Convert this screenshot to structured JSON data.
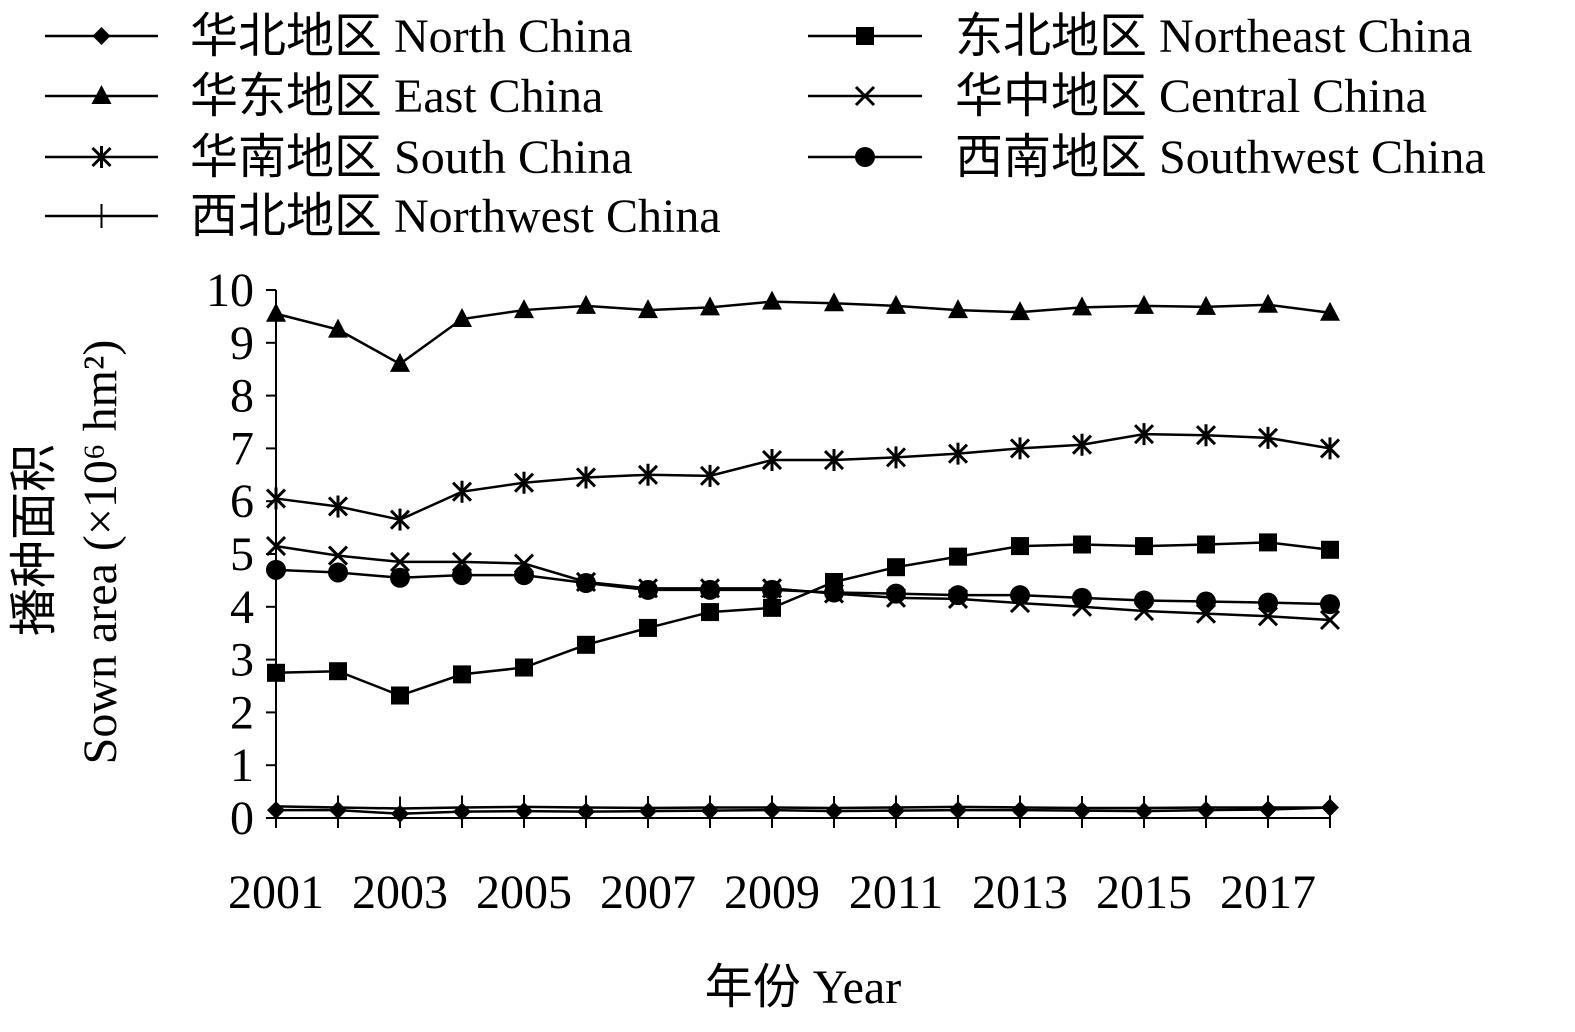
{
  "chart_data": {
    "type": "line",
    "xlabel": "年份 Year",
    "ylabel_lines": [
      "播种面积",
      "Sown area (×10⁶ hm²)"
    ],
    "ylim": [
      0,
      10
    ],
    "yticks": [
      0,
      1,
      2,
      3,
      4,
      5,
      6,
      7,
      8,
      9,
      10
    ],
    "x": [
      2001,
      2002,
      2003,
      2004,
      2005,
      2006,
      2007,
      2008,
      2009,
      2010,
      2011,
      2012,
      2013,
      2014,
      2015,
      2016,
      2017,
      2018
    ],
    "xtick_labels": [
      "2001",
      "2003",
      "2005",
      "2007",
      "2009",
      "2011",
      "2013",
      "2015",
      "2017"
    ],
    "grid": false,
    "legend_position": "top",
    "series": [
      {
        "name": "华北地区 North China",
        "marker": "diamond",
        "values": [
          0.15,
          0.15,
          0.08,
          0.12,
          0.13,
          0.12,
          0.13,
          0.14,
          0.15,
          0.13,
          0.14,
          0.15,
          0.15,
          0.14,
          0.13,
          0.15,
          0.16,
          0.2
        ]
      },
      {
        "name": "东北地区 Northeast China",
        "marker": "square",
        "values": [
          2.75,
          2.78,
          2.32,
          2.72,
          2.85,
          3.28,
          3.6,
          3.9,
          3.98,
          4.47,
          4.75,
          4.95,
          5.15,
          5.18,
          5.15,
          5.18,
          5.22,
          5.08
        ]
      },
      {
        "name": "华东地区 East China",
        "marker": "triangle",
        "values": [
          9.55,
          9.25,
          8.6,
          9.45,
          9.62,
          9.7,
          9.62,
          9.67,
          9.78,
          9.75,
          9.7,
          9.62,
          9.58,
          9.67,
          9.7,
          9.68,
          9.72,
          9.57
        ]
      },
      {
        "name": "华中地区 Central China",
        "marker": "x",
        "values": [
          5.15,
          4.97,
          4.85,
          4.85,
          4.82,
          4.47,
          4.35,
          4.35,
          4.35,
          4.25,
          4.17,
          4.15,
          4.07,
          4.0,
          3.92,
          3.87,
          3.82,
          3.75
        ]
      },
      {
        "name": "华南地区 South China",
        "marker": "star",
        "values": [
          6.05,
          5.9,
          5.65,
          6.18,
          6.35,
          6.45,
          6.5,
          6.48,
          6.78,
          6.78,
          6.83,
          6.9,
          7.0,
          7.07,
          7.27,
          7.25,
          7.2,
          7.0
        ]
      },
      {
        "name": "西南地区 Southwest China",
        "marker": "circle",
        "values": [
          4.7,
          4.65,
          4.55,
          4.6,
          4.6,
          4.45,
          4.32,
          4.32,
          4.32,
          4.27,
          4.25,
          4.22,
          4.22,
          4.17,
          4.12,
          4.1,
          4.08,
          4.05
        ]
      },
      {
        "name": "西北地区 Northwest China",
        "marker": "plus",
        "values": [
          0.22,
          0.2,
          0.18,
          0.2,
          0.21,
          0.2,
          0.19,
          0.2,
          0.2,
          0.19,
          0.2,
          0.21,
          0.2,
          0.19,
          0.19,
          0.2,
          0.2,
          0.2
        ]
      }
    ]
  }
}
